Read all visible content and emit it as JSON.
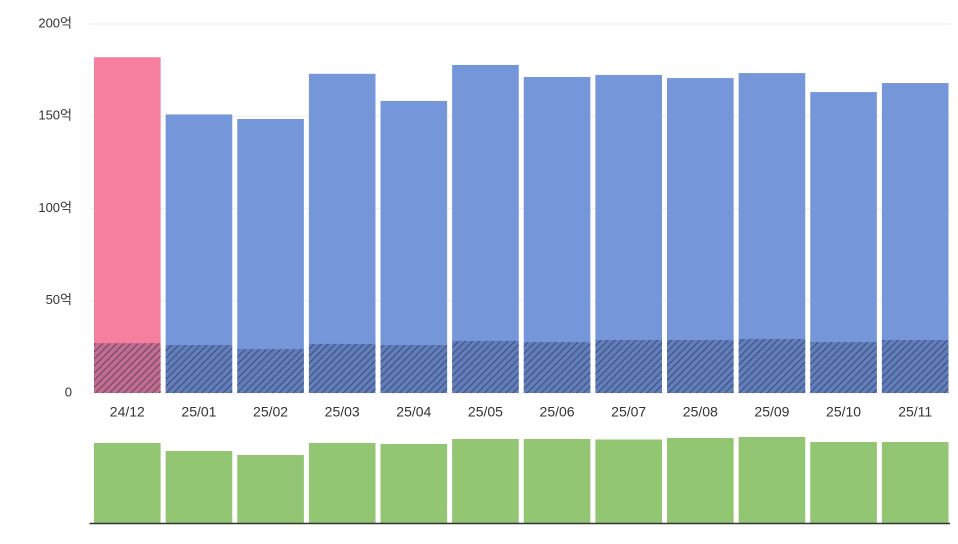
{
  "chart_data": [
    {
      "type": "bar",
      "categories": [
        "24/12",
        "25/01",
        "25/02",
        "25/03",
        "25/04",
        "25/05",
        "25/06",
        "25/07",
        "25/08",
        "25/09",
        "25/10",
        "25/11"
      ],
      "series": [
        {
          "colors": [
            "#f67f9e",
            "#7597d9",
            "#7597d9",
            "#7597d9",
            "#7597d9",
            "#7597d9",
            "#7597d9",
            "#7597d9",
            "#7597d9",
            "#7597d9",
            "#7597d9",
            "#7597d9"
          ],
          "values": [
            182,
            151,
            148.5,
            173,
            158.3,
            177.8,
            171.3,
            172.4,
            170.7,
            173.4,
            163.1,
            168
          ]
        },
        {
          "pattern": "hatch",
          "values": [
            27,
            26,
            23.8,
            26.6,
            26,
            28.2,
            27.6,
            28.7,
            28.7,
            29.3,
            27.6,
            28.7
          ]
        }
      ],
      "ylim": [
        0,
        200
      ],
      "yticks": [
        0,
        {
          "value": 50,
          "label": "50억"
        },
        {
          "value": 100,
          "label": "100억"
        },
        {
          "value": 150,
          "label": "150억"
        },
        {
          "value": 200,
          "label": "200억"
        }
      ],
      "grid": true
    },
    {
      "type": "bar",
      "color": "#93c672",
      "values": [
        80,
        72,
        68,
        80,
        79,
        84,
        84,
        83.5,
        85,
        86,
        81,
        81
      ],
      "ylim": [
        0,
        100
      ]
    }
  ]
}
